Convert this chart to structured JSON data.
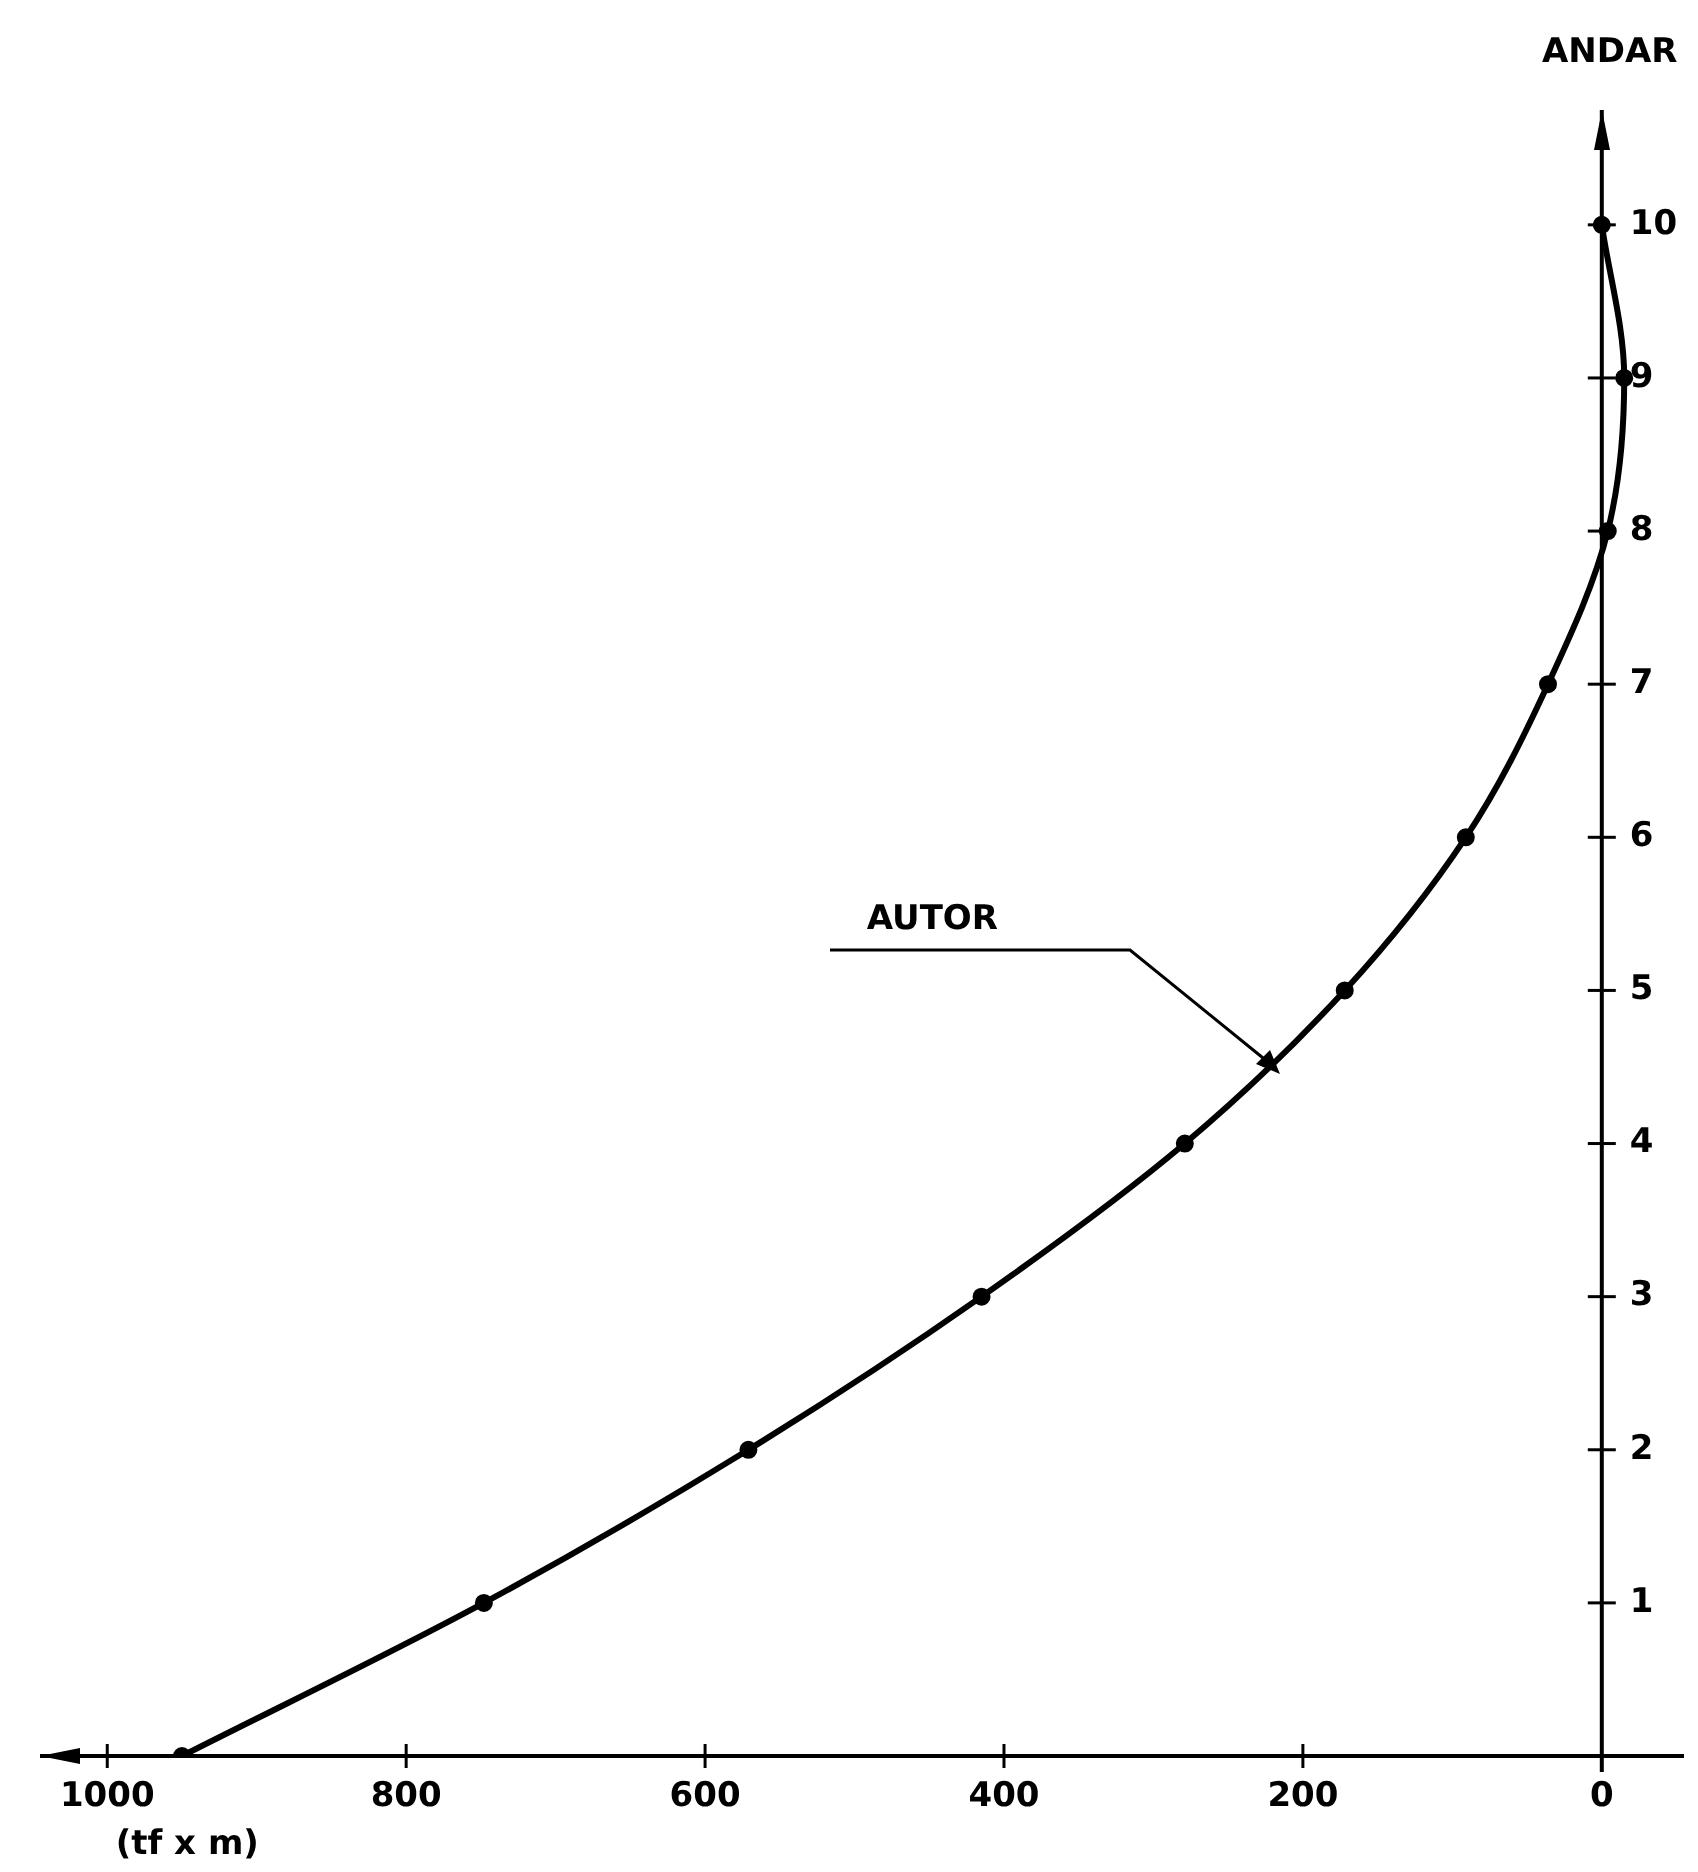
{
  "chart_data": {
    "type": "line",
    "xlabel": "(tf x m)",
    "ylabel": "ANDAR",
    "xlim": [
      1045,
      -55
    ],
    "ylim": [
      0,
      10.75
    ],
    "xticks": [
      1000,
      800,
      600,
      400,
      200,
      0
    ],
    "yticks": [
      1,
      2,
      3,
      4,
      5,
      6,
      7,
      8,
      9,
      10
    ],
    "series": [
      {
        "name": "AUTOR",
        "color": "#000000",
        "x": [
          950,
          748,
          571,
          415,
          279,
          172,
          91,
          36,
          -4,
          -15,
          0
        ],
        "values": [
          0,
          1,
          2,
          3,
          4,
          5,
          6,
          7,
          8,
          9,
          10
        ]
      }
    ],
    "marker": "circle",
    "line_style": "solid",
    "grid": false,
    "legend": false
  }
}
